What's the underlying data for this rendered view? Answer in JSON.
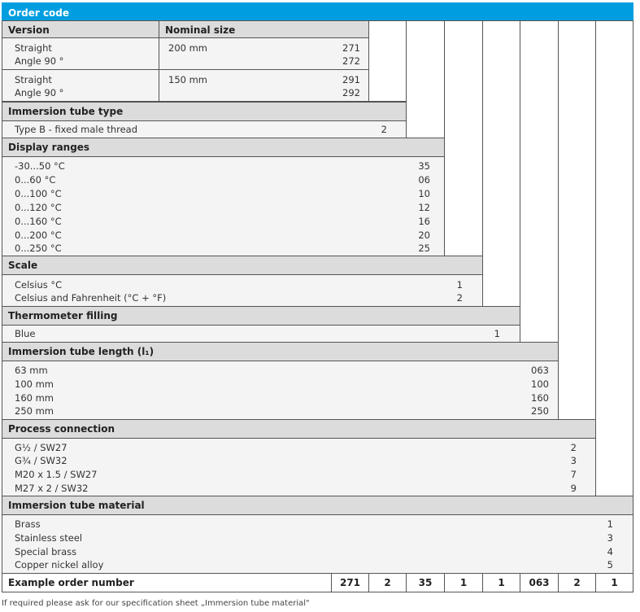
{
  "title": "Order code",
  "headers": {
    "version": "Version",
    "nominal_size": "Nominal size"
  },
  "version_rows": [
    {
      "labels": [
        "Straight",
        "Angle 90 °"
      ],
      "size": "200 mm",
      "codes": [
        "271",
        "272"
      ]
    },
    {
      "labels": [
        "Straight",
        "Angle 90 °"
      ],
      "size": "150 mm",
      "codes": [
        "291",
        "292"
      ]
    }
  ],
  "sections": [
    {
      "title": "Immersion tube type",
      "items": [
        "Type B - fixed male thread"
      ],
      "codes": [
        "2"
      ]
    },
    {
      "title": "Display ranges",
      "items": [
        "-30...50 °C",
        "0...60 °C",
        "0...100 °C",
        "0...120 °C",
        "0...160 °C",
        "0...200 °C",
        "0...250 °C"
      ],
      "codes": [
        "35",
        "06",
        "10",
        "12",
        "16",
        "20",
        "25"
      ]
    },
    {
      "title": "Scale",
      "items": [
        "Celsius °C",
        "Celsius and Fahrenheit (°C + °F)"
      ],
      "codes": [
        "1",
        "2"
      ]
    },
    {
      "title": "Thermometer filling",
      "items": [
        "Blue"
      ],
      "codes": [
        "1"
      ]
    },
    {
      "title": "Immersion tube length (l₁)",
      "items": [
        "63 mm",
        "100 mm",
        "160 mm",
        "250 mm"
      ],
      "codes": [
        "063",
        "100",
        "160",
        "250"
      ]
    },
    {
      "title": "Process connection",
      "items": [
        "G½ / SW27",
        "G¾ / SW32",
        "M20 x 1.5 / SW27",
        "M27 x 2 / SW32"
      ],
      "codes": [
        "2",
        "3",
        "7",
        "9"
      ]
    },
    {
      "title": "Immersion tube material",
      "items": [
        "Brass",
        "Stainless steel",
        "Special brass",
        "Copper nickel alloy"
      ],
      "codes": [
        "1",
        "3",
        "4",
        "5"
      ]
    }
  ],
  "example": {
    "label": "Example order number",
    "values": [
      "271",
      "2",
      "35",
      "1",
      "1",
      "063",
      "2",
      "1"
    ]
  },
  "note": "If required please ask for our specification sheet „Immersion tube material\""
}
